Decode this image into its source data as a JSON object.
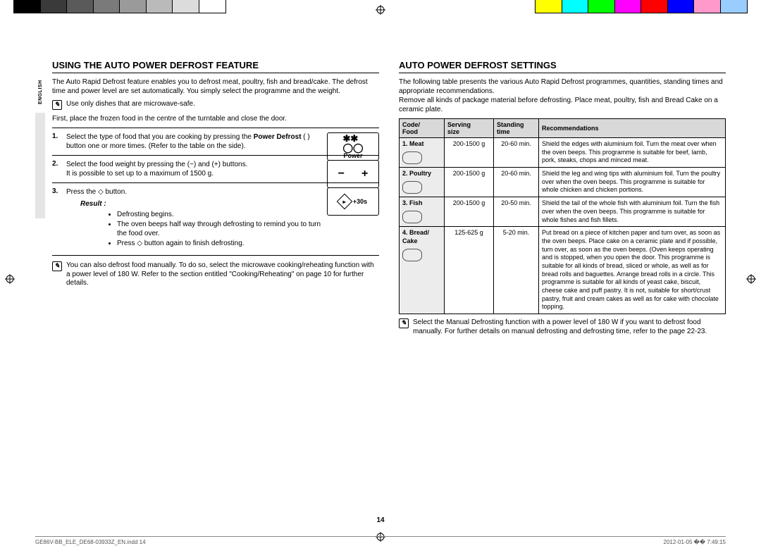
{
  "colorbar_left": [
    "#000000",
    "#3a3a3a",
    "#5a5a5a",
    "#7a7a7a",
    "#9a9a9a",
    "#bababa",
    "#dcdcdc",
    "#ffffff"
  ],
  "colorbar_right": [
    "#ffff00",
    "#00ffff",
    "#00ff00",
    "#ff00ff",
    "#ff0000",
    "#0000ff",
    "#ff99cc",
    "#99ccff"
  ],
  "side_label": "ENGLISH",
  "left": {
    "heading": "USING THE AUTO POWER DEFROST FEATURE",
    "intro": "The Auto Rapid Defrost feature enables you to defrost meat, poultry, fish and bread/cake. The defrost time and power level are set automatically. You simply select the programme and the weight.",
    "note1": "Use only dishes that are microwave-safe.",
    "first_para": "First, place the frozen food in the centre of the turntable and close the door.",
    "steps": [
      {
        "num": "1.",
        "text": "Select the type of food that you are cooking by pressing the Power Defrost ( ) button one or more times. (Refer to the table on the side)."
      },
      {
        "num": "2.",
        "text": "Select the food weight by pressing the (−) and (+) buttons.\nIt is possible to set up to a maximum of 1500 g."
      },
      {
        "num": "3.",
        "text": "Press the ◇ button."
      }
    ],
    "btn_power_label": "Power",
    "btn_30s": "+30s",
    "result_label": "Result :",
    "bullets": [
      "Defrosting begins.",
      "The oven beeps half way through defrosting to remind you to turn the food over.",
      "Press ◇ button again to finish defrosting."
    ],
    "note2": "You can also defrost food manually. To do so, select the microwave cooking/reheating function with a power level of 180 W. Refer to the section entitled \"Cooking/Reheating\" on page 10 for further details."
  },
  "right": {
    "heading": "AUTO POWER DEFROST SETTINGS",
    "intro": "The following table presents the various Auto Rapid Defrost programmes, quantities, standing times and appropriate recommendations.\nRemove all kinds of package material before defrosting. Place meat, poultry, fish and Bread Cake on a ceramic plate.",
    "th": [
      "Code/\nFood",
      "Serving\nsize",
      "Standing\ntime",
      "Recommendations"
    ],
    "rows": [
      {
        "code": "1. Meat",
        "serving": "200-1500 g",
        "standing": "20-60 min.",
        "rec": "Shield the edges with aluminium foil. Turn the meat over when the oven beeps. This programme is suitable for beef, lamb, pork, steaks, chops and minced meat."
      },
      {
        "code": "2. Poultry",
        "serving": "200-1500 g",
        "standing": "20-60 min.",
        "rec": "Shield the leg and wing tips with aluminium foil. Turn the poultry over when the oven beeps. This programme is suitable for whole chicken and chicken portions."
      },
      {
        "code": "3. Fish",
        "serving": "200-1500 g",
        "standing": "20-50 min.",
        "rec": "Shield the tail of the whole fish with aluminium foil. Turn the fish over when the oven beeps. This programme is suitable for whole fishes and fish fillets."
      },
      {
        "code": "4. Bread/\nCake",
        "serving": "125-625 g",
        "standing": "5-20 min.",
        "rec": "Put bread on a piece of kitchen paper and turn over, as soon as the oven beeps. Place cake on a ceramic plate and if possible, turn over, as soon as the oven beeps. (Oven keeps operating and is stopped, when you open the door. This programme is suitable for all kinds of bread, sliced or whole, as well as for bread rolls and baguettes. Arrange bread rolls in a circle. This programme is suitable for all kinds of yeast cake, biscuit, cheese cake and puff pastry. It is not, suitable for short/crust pastry, fruit and cream cakes as well as for cake with chocolate topping."
      }
    ],
    "note": "Select the Manual Defrosting function with a power level of 180 W if you want to defrost food manually. For further details on manual defrosting and defrosting time, refer to the page 22-23."
  },
  "page_num": "14",
  "footer_left": "GE86V-BB_ELE_DE68-03933Z_EN.indd   14",
  "footer_right": "2012-01-05   �� 7:49:15"
}
